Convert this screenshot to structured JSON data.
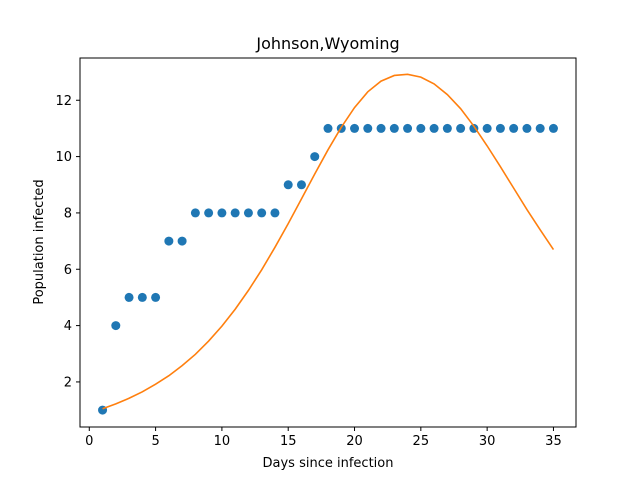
{
  "chart_data": {
    "type": "scatter",
    "title": "Johnson,Wyoming",
    "xlabel": "Days since infection",
    "ylabel": "Population infected",
    "xlim": [
      -0.7,
      36.7
    ],
    "ylim": [
      0.4,
      13.5
    ],
    "xticks": [
      0,
      5,
      10,
      15,
      20,
      25,
      30,
      35
    ],
    "yticks": [
      2,
      4,
      6,
      8,
      10,
      12
    ],
    "grid": false,
    "legend": "none",
    "series": [
      {
        "kind": "scatter",
        "color": "#1f77b4",
        "x": [
          1,
          2,
          3,
          4,
          5,
          6,
          7,
          8,
          9,
          10,
          11,
          12,
          13,
          14,
          15,
          16,
          17,
          18,
          19,
          20,
          21,
          22,
          23,
          24,
          25,
          26,
          27,
          28,
          29,
          30,
          31,
          32,
          33,
          34,
          35
        ],
        "y": [
          1,
          4,
          5,
          5,
          5,
          7,
          7,
          8,
          8,
          8,
          8,
          8,
          8,
          8,
          9,
          9,
          10,
          11,
          11,
          11,
          11,
          11,
          11,
          11,
          11,
          11,
          11,
          11,
          11,
          11,
          11,
          11,
          11,
          11,
          11
        ]
      },
      {
        "kind": "line",
        "color": "#ff7f0e",
        "x": [
          1,
          2,
          3,
          4,
          5,
          6,
          7,
          8,
          9,
          10,
          11,
          12,
          13,
          14,
          15,
          16,
          17,
          18,
          19,
          20,
          21,
          22,
          23,
          24,
          25,
          26,
          27,
          28,
          29,
          30,
          31,
          32,
          33,
          34,
          35
        ],
        "y": [
          1.05,
          1.22,
          1.42,
          1.65,
          1.92,
          2.22,
          2.58,
          2.98,
          3.45,
          3.98,
          4.58,
          5.25,
          5.98,
          6.78,
          7.62,
          8.5,
          9.38,
          10.24,
          11.04,
          11.74,
          12.3,
          12.68,
          12.88,
          12.92,
          12.82,
          12.58,
          12.2,
          11.7,
          11.08,
          10.38,
          9.64,
          8.88,
          8.12,
          7.4,
          6.7
        ]
      }
    ]
  }
}
